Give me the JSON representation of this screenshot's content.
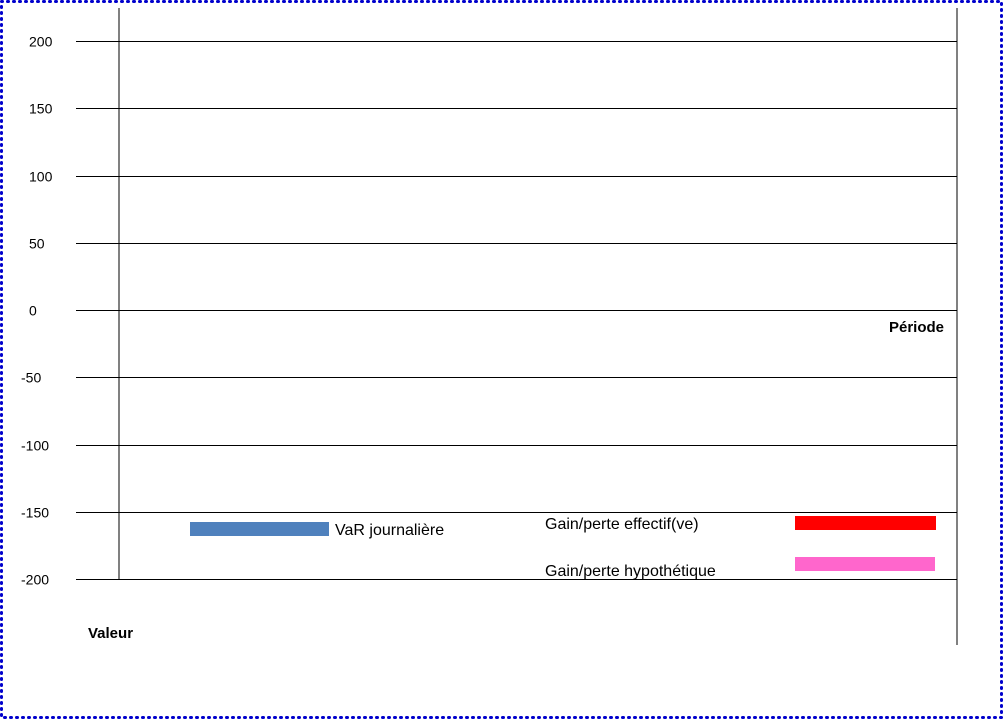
{
  "chart_data": {
    "type": "line",
    "title": "",
    "xlabel": "Période",
    "ylabel": "Valeur",
    "ylim": [
      -200,
      200
    ],
    "yticks": [
      200,
      150,
      100,
      50,
      0,
      -50,
      -100,
      -150,
      -200
    ],
    "grid": true,
    "legend_position": "bottom",
    "series": [
      {
        "name": "VaR journalière",
        "color": "#4f81bd",
        "values": []
      },
      {
        "name": "Gain/perte effectif(ve)",
        "color": "#ff0000",
        "values": []
      },
      {
        "name": "Gain/perte hypothétique",
        "color": "#ff66cc",
        "values": []
      }
    ]
  },
  "colors": {
    "frame_border": "#0000cc",
    "gridline": "#000000"
  }
}
